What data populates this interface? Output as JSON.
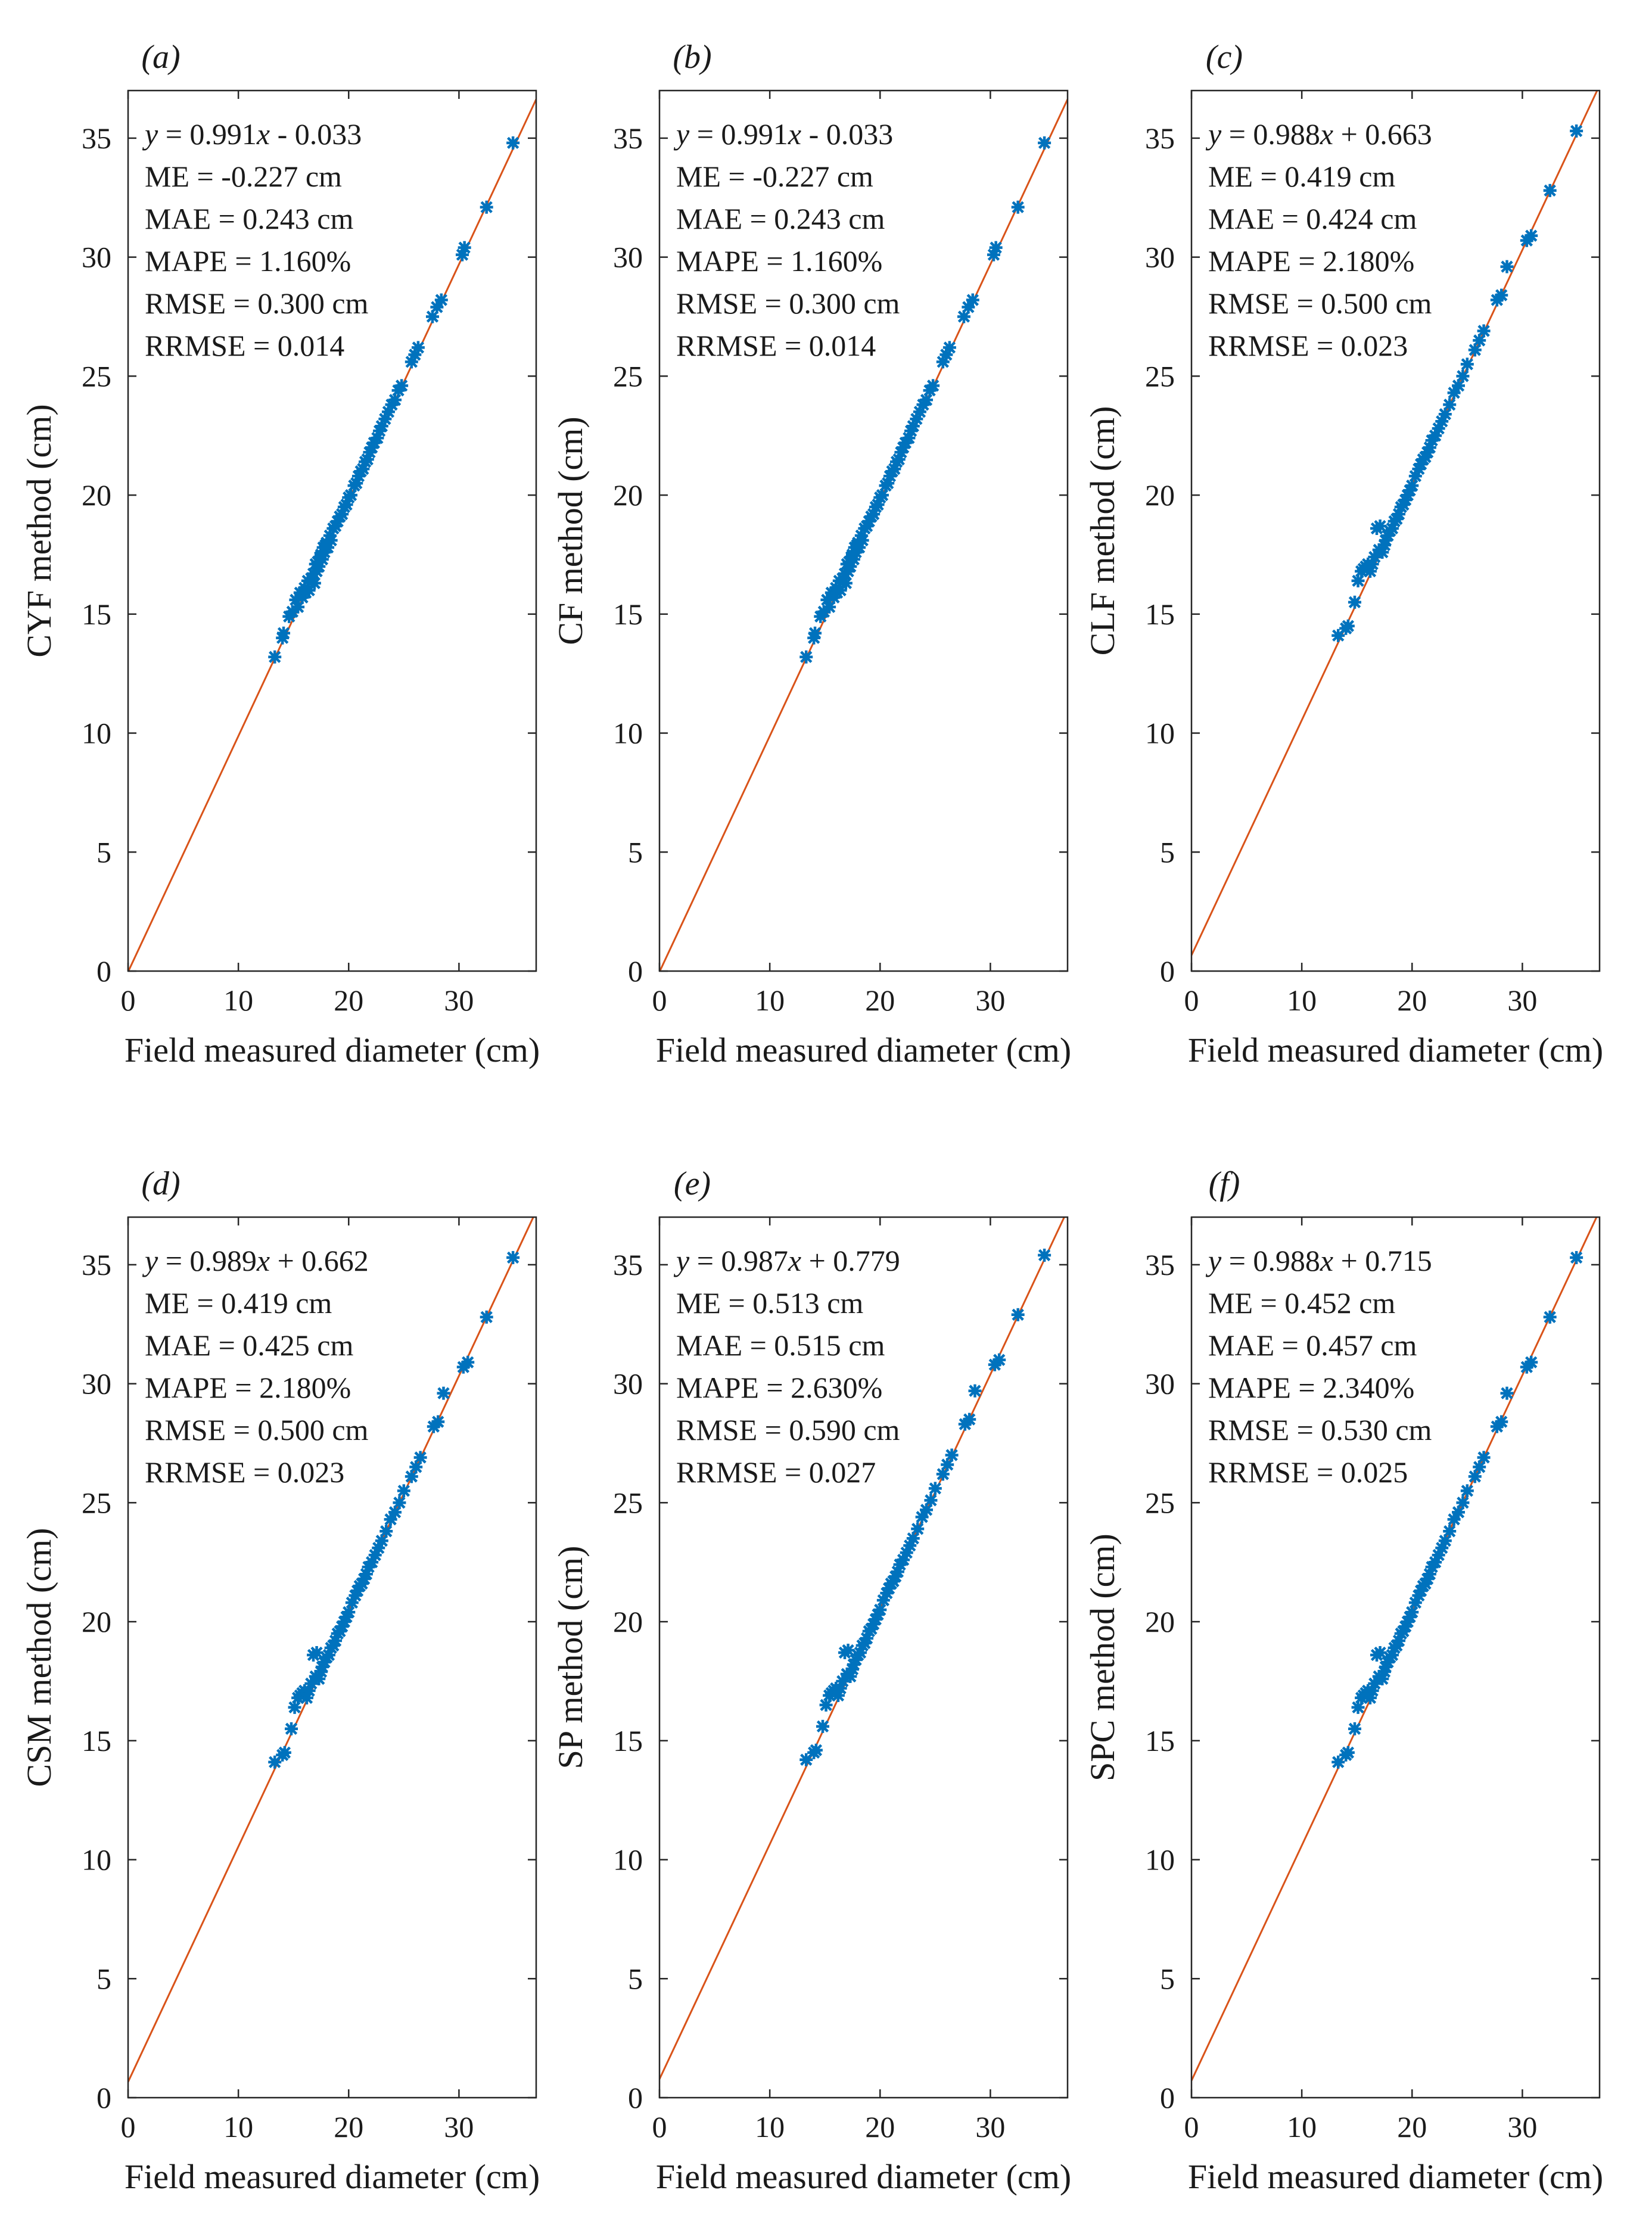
{
  "chart_data": [
    {
      "type": "scatter",
      "panel_label": "(a)",
      "xlabel": "Field measured diameter (cm)",
      "ylabel": "CYF method (cm)",
      "xlim": [
        0,
        37
      ],
      "ylim": [
        0,
        37
      ],
      "xticks": [
        0,
        10,
        20,
        30
      ],
      "yticks": [
        0,
        5,
        10,
        15,
        20,
        25,
        30,
        35
      ],
      "fit": {
        "slope": 0.991,
        "intercept": -0.033
      },
      "stats": {
        "eq_y": "y",
        "eq_x": "x",
        "eq_rest": " = 0.991",
        "eq_tail": " - 0.033",
        "me": "ME = -0.227 cm",
        "mae": "MAE = 0.243 cm",
        "mape": "MAPE = 1.160%",
        "rmse": "RMSE = 0.300 cm",
        "rrmse": "RRMSE = 0.014"
      },
      "x": [
        13.3,
        14.0,
        14.1,
        14.6,
        14.9,
        15.2,
        15.4,
        15.6,
        15.8,
        16.0,
        16.1,
        16.3,
        16.4,
        16.6,
        16.8,
        16.9,
        17.0,
        17.1,
        17.2,
        17.3,
        17.4,
        17.5,
        17.6,
        17.7,
        17.8,
        17.9,
        18.0,
        18.1,
        18.3,
        18.4,
        18.6,
        18.8,
        19.0,
        19.2,
        19.4,
        19.6,
        19.8,
        20.0,
        20.2,
        20.5,
        20.7,
        20.9,
        21.1,
        21.3,
        21.5,
        21.7,
        21.9,
        22.1,
        22.3,
        22.6,
        22.8,
        23.0,
        23.3,
        23.6,
        23.9,
        24.2,
        24.5,
        24.8,
        25.7,
        26.0,
        26.3,
        27.6,
        28.0,
        28.4,
        30.3,
        30.5,
        32.5,
        34.9
      ],
      "y": [
        13.2,
        14.0,
        14.2,
        14.9,
        15.1,
        15.6,
        15.3,
        15.9,
        15.7,
        16.1,
        15.9,
        16.4,
        16.0,
        16.5,
        16.7,
        16.3,
        17.1,
        16.8,
        17.2,
        17.0,
        17.4,
        17.5,
        17.3,
        17.8,
        17.6,
        17.9,
        18.0,
        17.8,
        18.3,
        18.1,
        18.6,
        18.7,
        18.9,
        19.1,
        19.2,
        19.5,
        19.6,
        19.9,
        20.0,
        20.4,
        20.5,
        20.8,
        21.0,
        21.1,
        21.4,
        21.5,
        21.8,
        22.0,
        22.2,
        22.4,
        22.7,
        22.9,
        23.2,
        23.5,
        23.8,
        24.0,
        24.4,
        24.6,
        25.6,
        25.9,
        26.2,
        27.5,
        27.9,
        28.2,
        30.1,
        30.4,
        32.1,
        34.8
      ]
    },
    {
      "type": "scatter",
      "panel_label": "(b)",
      "xlabel": "Field measured diameter (cm)",
      "ylabel": "CF method (cm)",
      "xlim": [
        0,
        37
      ],
      "ylim": [
        0,
        37
      ],
      "xticks": [
        0,
        10,
        20,
        30
      ],
      "yticks": [
        0,
        5,
        10,
        15,
        20,
        25,
        30,
        35
      ],
      "fit": {
        "slope": 0.991,
        "intercept": -0.033
      },
      "stats": {
        "eq_y": "y",
        "eq_x": "x",
        "eq_rest": " = 0.991",
        "eq_tail": " - 0.033",
        "me": "ME = -0.227 cm",
        "mae": "MAE = 0.243 cm",
        "mape": "MAPE = 1.160%",
        "rmse": "RMSE = 0.300 cm",
        "rrmse": "RRMSE = 0.014"
      },
      "x": [
        13.3,
        14.0,
        14.1,
        14.6,
        14.9,
        15.2,
        15.4,
        15.6,
        15.8,
        16.0,
        16.1,
        16.3,
        16.4,
        16.6,
        16.8,
        16.9,
        17.0,
        17.1,
        17.2,
        17.3,
        17.4,
        17.5,
        17.6,
        17.7,
        17.8,
        17.9,
        18.0,
        18.1,
        18.3,
        18.4,
        18.6,
        18.8,
        19.0,
        19.2,
        19.4,
        19.6,
        19.8,
        20.0,
        20.2,
        20.5,
        20.7,
        20.9,
        21.1,
        21.3,
        21.5,
        21.7,
        21.9,
        22.1,
        22.3,
        22.6,
        22.8,
        23.0,
        23.3,
        23.6,
        23.9,
        24.2,
        24.5,
        24.8,
        25.7,
        26.0,
        26.3,
        27.6,
        28.0,
        28.4,
        30.3,
        30.5,
        32.5,
        34.9
      ],
      "y": [
        13.2,
        14.0,
        14.2,
        14.9,
        15.1,
        15.6,
        15.3,
        15.9,
        15.7,
        16.1,
        15.9,
        16.4,
        16.0,
        16.5,
        16.7,
        16.3,
        17.1,
        16.8,
        17.2,
        17.0,
        17.4,
        17.5,
        17.3,
        17.8,
        17.6,
        17.9,
        18.0,
        17.8,
        18.3,
        18.1,
        18.6,
        18.7,
        18.9,
        19.1,
        19.2,
        19.5,
        19.6,
        19.9,
        20.0,
        20.4,
        20.5,
        20.8,
        21.0,
        21.1,
        21.4,
        21.5,
        21.8,
        22.0,
        22.2,
        22.4,
        22.7,
        22.9,
        23.2,
        23.5,
        23.8,
        24.0,
        24.4,
        24.6,
        25.6,
        25.9,
        26.2,
        27.5,
        27.9,
        28.2,
        30.1,
        30.4,
        32.1,
        34.8
      ]
    },
    {
      "type": "scatter",
      "panel_label": "(c)",
      "xlabel": "Field measured diameter (cm)",
      "ylabel": "CLF method (cm)",
      "xlim": [
        0,
        37
      ],
      "ylim": [
        0,
        37
      ],
      "xticks": [
        0,
        10,
        20,
        30
      ],
      "yticks": [
        0,
        5,
        10,
        15,
        20,
        25,
        30,
        35
      ],
      "fit": {
        "slope": 0.988,
        "intercept": 0.663
      },
      "stats": {
        "eq_y": "y",
        "eq_x": "x",
        "eq_rest": " = 0.988",
        "eq_tail": " + 0.663",
        "me": "ME = 0.419 cm",
        "mae": "MAE = 0.424 cm",
        "mape": "MAPE = 2.180%",
        "rmse": "RMSE = 0.500 cm",
        "rrmse": "RRMSE = 0.023"
      },
      "x": [
        13.3,
        14.0,
        14.2,
        14.8,
        15.1,
        15.4,
        15.6,
        15.8,
        16.0,
        16.2,
        16.4,
        16.6,
        16.8,
        17.0,
        17.1,
        17.3,
        17.5,
        17.6,
        17.8,
        18.0,
        18.2,
        18.4,
        18.6,
        18.8,
        19.0,
        19.2,
        19.4,
        19.6,
        19.8,
        20.0,
        20.3,
        20.6,
        20.8,
        21.0,
        21.2,
        21.4,
        21.6,
        21.8,
        22.1,
        22.4,
        22.7,
        23.0,
        23.4,
        23.8,
        24.2,
        24.6,
        25.0,
        25.7,
        26.1,
        26.5,
        27.7,
        28.1,
        28.6,
        30.4,
        30.8,
        32.5,
        34.9
      ],
      "y": [
        14.1,
        14.4,
        14.5,
        15.5,
        16.4,
        16.8,
        16.9,
        17.0,
        17.1,
        16.8,
        17.1,
        17.4,
        18.6,
        17.7,
        18.7,
        17.6,
        17.9,
        18.1,
        18.3,
        18.5,
        18.6,
        18.9,
        19.0,
        19.2,
        19.5,
        19.6,
        19.8,
        20.0,
        20.2,
        20.4,
        20.8,
        21.1,
        21.3,
        21.5,
        21.6,
        21.8,
        22.0,
        22.3,
        22.5,
        22.8,
        23.1,
        23.4,
        23.8,
        24.3,
        24.6,
        25.0,
        25.5,
        26.1,
        26.5,
        26.9,
        28.2,
        28.4,
        29.6,
        30.7,
        30.9,
        32.8,
        35.3
      ]
    },
    {
      "type": "scatter",
      "panel_label": "(d)",
      "xlabel": "Field measured diameter (cm)",
      "ylabel": "CSM method (cm)",
      "xlim": [
        0,
        37
      ],
      "ylim": [
        0,
        37
      ],
      "xticks": [
        0,
        10,
        20,
        30
      ],
      "yticks": [
        0,
        5,
        10,
        15,
        20,
        25,
        30,
        35
      ],
      "fit": {
        "slope": 0.989,
        "intercept": 0.662
      },
      "stats": {
        "eq_y": "y",
        "eq_x": "x",
        "eq_rest": " = 0.989",
        "eq_tail": " + 0.662",
        "me": "ME = 0.419 cm",
        "mae": "MAE = 0.425 cm",
        "mape": "MAPE = 2.180%",
        "rmse": "RMSE = 0.500 cm",
        "rrmse": "RRMSE = 0.023"
      },
      "x": [
        13.3,
        14.0,
        14.2,
        14.8,
        15.1,
        15.4,
        15.6,
        15.8,
        16.0,
        16.2,
        16.4,
        16.6,
        16.8,
        17.0,
        17.1,
        17.3,
        17.5,
        17.6,
        17.8,
        18.0,
        18.2,
        18.4,
        18.6,
        18.8,
        19.0,
        19.2,
        19.4,
        19.6,
        19.8,
        20.0,
        20.3,
        20.6,
        20.8,
        21.0,
        21.2,
        21.4,
        21.6,
        21.8,
        22.1,
        22.4,
        22.7,
        23.0,
        23.4,
        23.8,
        24.2,
        24.6,
        25.0,
        25.7,
        26.1,
        26.5,
        27.7,
        28.1,
        28.6,
        30.4,
        30.8,
        32.5,
        34.9
      ],
      "y": [
        14.1,
        14.4,
        14.5,
        15.5,
        16.4,
        16.8,
        16.9,
        17.0,
        17.1,
        16.8,
        17.1,
        17.4,
        18.6,
        17.7,
        18.7,
        17.6,
        17.9,
        18.1,
        18.3,
        18.5,
        18.6,
        18.9,
        19.0,
        19.2,
        19.5,
        19.6,
        19.8,
        20.0,
        20.2,
        20.4,
        20.8,
        21.1,
        21.3,
        21.5,
        21.6,
        21.8,
        22.0,
        22.3,
        22.5,
        22.8,
        23.1,
        23.4,
        23.8,
        24.3,
        24.6,
        25.0,
        25.5,
        26.1,
        26.5,
        26.9,
        28.2,
        28.4,
        29.6,
        30.7,
        30.9,
        32.8,
        35.3
      ]
    },
    {
      "type": "scatter",
      "panel_label": "(e)",
      "xlabel": "Field measured diameter (cm)",
      "ylabel": "SP method (cm)",
      "xlim": [
        0,
        37
      ],
      "ylim": [
        0,
        37
      ],
      "xticks": [
        0,
        10,
        20,
        30
      ],
      "yticks": [
        0,
        5,
        10,
        15,
        20,
        25,
        30,
        35
      ],
      "fit": {
        "slope": 0.987,
        "intercept": 0.779
      },
      "stats": {
        "eq_y": "y",
        "eq_x": "x",
        "eq_rest": " = 0.987",
        "eq_tail": " + 0.779",
        "me": "ME = 0.513 cm",
        "mae": "MAE = 0.515 cm",
        "mape": "MAPE = 2.630%",
        "rmse": "RMSE = 0.590 cm",
        "rrmse": "RRMSE = 0.027"
      },
      "x": [
        13.3,
        14.0,
        14.2,
        14.8,
        15.1,
        15.4,
        15.6,
        15.8,
        16.0,
        16.2,
        16.4,
        16.6,
        16.8,
        17.0,
        17.1,
        17.3,
        17.5,
        17.6,
        17.8,
        18.0,
        18.2,
        18.4,
        18.6,
        18.8,
        19.0,
        19.2,
        19.4,
        19.6,
        19.8,
        20.0,
        20.3,
        20.6,
        20.8,
        21.0,
        21.2,
        21.4,
        21.6,
        21.8,
        22.1,
        22.4,
        22.7,
        23.0,
        23.4,
        23.8,
        24.2,
        24.6,
        25.0,
        25.7,
        26.1,
        26.5,
        27.7,
        28.1,
        28.6,
        30.4,
        30.8,
        32.5,
        34.9
      ],
      "y": [
        14.2,
        14.5,
        14.6,
        15.6,
        16.5,
        16.9,
        17.0,
        17.1,
        17.2,
        16.9,
        17.2,
        17.5,
        18.7,
        17.8,
        18.8,
        17.7,
        18.0,
        18.2,
        18.4,
        18.6,
        18.7,
        19.0,
        19.1,
        19.3,
        19.6,
        19.7,
        19.9,
        20.1,
        20.3,
        20.5,
        20.9,
        21.2,
        21.4,
        21.6,
        21.7,
        21.9,
        22.1,
        22.4,
        22.6,
        22.9,
        23.2,
        23.5,
        23.9,
        24.4,
        24.7,
        25.1,
        25.6,
        26.2,
        26.6,
        27.0,
        28.3,
        28.5,
        29.7,
        30.8,
        31.0,
        32.9,
        35.4
      ]
    },
    {
      "type": "scatter",
      "panel_label": "(f)",
      "xlabel": "Field measured diameter (cm)",
      "ylabel": "SPC method (cm)",
      "xlim": [
        0,
        37
      ],
      "ylim": [
        0,
        37
      ],
      "xticks": [
        0,
        10,
        20,
        30
      ],
      "yticks": [
        0,
        5,
        10,
        15,
        20,
        25,
        30,
        35
      ],
      "fit": {
        "slope": 0.988,
        "intercept": 0.715
      },
      "stats": {
        "eq_y": "y",
        "eq_x": "x",
        "eq_rest": " = 0.988",
        "eq_tail": " + 0.715",
        "me": "ME = 0.452 cm",
        "mae": "MAE = 0.457 cm",
        "mape": "MAPE = 2.340%",
        "rmse": "RMSE = 0.530 cm",
        "rrmse": "RRMSE = 0.025"
      },
      "x": [
        13.3,
        14.0,
        14.2,
        14.8,
        15.1,
        15.4,
        15.6,
        15.8,
        16.0,
        16.2,
        16.4,
        16.6,
        16.8,
        17.0,
        17.1,
        17.3,
        17.5,
        17.6,
        17.8,
        18.0,
        18.2,
        18.4,
        18.6,
        18.8,
        19.0,
        19.2,
        19.4,
        19.6,
        19.8,
        20.0,
        20.3,
        20.6,
        20.8,
        21.0,
        21.2,
        21.4,
        21.6,
        21.8,
        22.1,
        22.4,
        22.7,
        23.0,
        23.4,
        23.8,
        24.2,
        24.6,
        25.0,
        25.7,
        26.1,
        26.5,
        27.7,
        28.1,
        28.6,
        30.4,
        30.8,
        32.5,
        34.9
      ],
      "y": [
        14.1,
        14.4,
        14.5,
        15.5,
        16.4,
        16.8,
        16.9,
        17.0,
        17.1,
        16.8,
        17.1,
        17.4,
        18.6,
        17.7,
        18.7,
        17.6,
        17.9,
        18.1,
        18.3,
        18.5,
        18.6,
        18.9,
        19.0,
        19.2,
        19.5,
        19.6,
        19.8,
        20.0,
        20.2,
        20.4,
        20.8,
        21.1,
        21.3,
        21.5,
        21.6,
        21.8,
        22.0,
        22.3,
        22.5,
        22.8,
        23.1,
        23.4,
        23.8,
        24.3,
        24.6,
        25.0,
        25.5,
        26.1,
        26.5,
        26.9,
        28.2,
        28.4,
        29.6,
        30.7,
        30.9,
        32.8,
        35.3
      ]
    }
  ],
  "colors": {
    "marker": "#0072bd",
    "fit_line": "#d95319",
    "axes": "#262626",
    "text": "#1a1a1a"
  }
}
